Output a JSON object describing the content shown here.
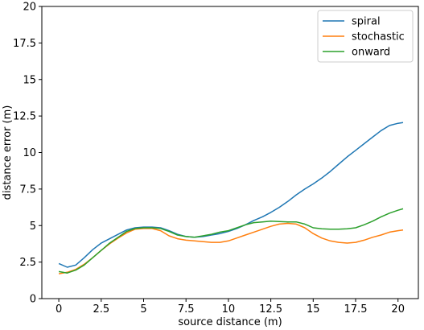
{
  "chart_data": {
    "type": "line",
    "title": "",
    "xlabel": "source distance (m)",
    "ylabel": "distance error (m)",
    "xlim": [
      -1.0,
      21.2
    ],
    "ylim": [
      0,
      20
    ],
    "xticks": [
      0,
      2.5,
      5,
      7.5,
      10,
      12.5,
      15,
      17.5,
      20
    ],
    "xtick_labels": [
      "0",
      "2.5",
      "5",
      "7.5",
      "10",
      "12.5",
      "15",
      "17.5",
      "20"
    ],
    "yticks": [
      0,
      2.5,
      5,
      7.5,
      10,
      12.5,
      15,
      17.5,
      20
    ],
    "ytick_labels": [
      "0",
      "2.5",
      "5",
      "7.5",
      "10",
      "12.5",
      "15",
      "17.5",
      "20"
    ],
    "grid": false,
    "legend_position": "top-right",
    "series": [
      {
        "name": "spiral",
        "color": "#1f77b4",
        "x": [
          0,
          0.5,
          1,
          1.5,
          2,
          2.5,
          3,
          3.5,
          4,
          4.5,
          5,
          5.5,
          6,
          6.5,
          7,
          7.5,
          8,
          8.5,
          9,
          9.5,
          10,
          10.5,
          11,
          11.5,
          12,
          12.5,
          13,
          13.5,
          14,
          14.5,
          15,
          15.5,
          16,
          16.5,
          17,
          17.5,
          18,
          18.5,
          19,
          19.5,
          20,
          20.3
        ],
        "y": [
          2.4,
          2.15,
          2.3,
          2.8,
          3.35,
          3.8,
          4.1,
          4.4,
          4.7,
          4.85,
          4.9,
          4.9,
          4.85,
          4.65,
          4.4,
          4.25,
          4.2,
          4.25,
          4.35,
          4.45,
          4.6,
          4.8,
          5.05,
          5.35,
          5.6,
          5.9,
          6.25,
          6.65,
          7.1,
          7.5,
          7.85,
          8.25,
          8.7,
          9.2,
          9.7,
          10.15,
          10.6,
          11.05,
          11.5,
          11.85,
          12.0,
          12.05
        ]
      },
      {
        "name": "stochastic",
        "color": "#ff7f0e",
        "x": [
          0,
          0.5,
          1,
          1.5,
          2,
          2.5,
          3,
          3.5,
          4,
          4.5,
          5,
          5.5,
          6,
          6.5,
          7,
          7.5,
          8,
          8.5,
          9,
          9.5,
          10,
          10.5,
          11,
          11.5,
          12,
          12.5,
          13,
          13.5,
          14,
          14.5,
          15,
          15.5,
          16,
          16.5,
          17,
          17.5,
          18,
          18.5,
          19,
          19.5,
          20,
          20.3
        ],
        "y": [
          1.7,
          1.8,
          2.0,
          2.35,
          2.8,
          3.3,
          3.75,
          4.15,
          4.5,
          4.75,
          4.8,
          4.8,
          4.65,
          4.3,
          4.1,
          4.0,
          3.95,
          3.9,
          3.85,
          3.85,
          3.95,
          4.15,
          4.35,
          4.55,
          4.75,
          4.95,
          5.1,
          5.15,
          5.1,
          4.85,
          4.45,
          4.15,
          3.95,
          3.85,
          3.8,
          3.85,
          4.0,
          4.2,
          4.35,
          4.55,
          4.65,
          4.7
        ]
      },
      {
        "name": "onward",
        "color": "#2ca02c",
        "x": [
          0,
          0.5,
          1,
          1.5,
          2,
          2.5,
          3,
          3.5,
          4,
          4.5,
          5,
          5.5,
          6,
          6.5,
          7,
          7.5,
          8,
          8.5,
          9,
          9.5,
          10,
          10.5,
          11,
          11.5,
          12,
          12.5,
          13,
          13.5,
          14,
          14.5,
          15,
          15.5,
          16,
          16.5,
          17,
          17.5,
          18,
          18.5,
          19,
          19.5,
          20,
          20.3
        ],
        "y": [
          1.85,
          1.75,
          1.95,
          2.3,
          2.8,
          3.3,
          3.8,
          4.2,
          4.6,
          4.8,
          4.85,
          4.85,
          4.8,
          4.6,
          4.35,
          4.25,
          4.2,
          4.3,
          4.4,
          4.55,
          4.65,
          4.85,
          5.05,
          5.2,
          5.25,
          5.3,
          5.28,
          5.25,
          5.25,
          5.1,
          4.85,
          4.78,
          4.75,
          4.75,
          4.78,
          4.85,
          5.05,
          5.3,
          5.6,
          5.85,
          6.05,
          6.15
        ]
      }
    ]
  }
}
